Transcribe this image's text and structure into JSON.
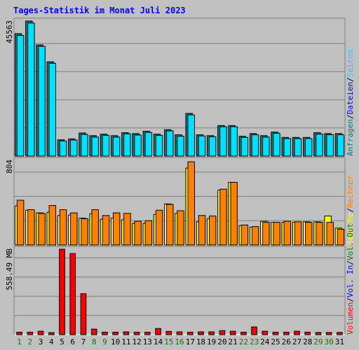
{
  "chart_data": {
    "type": "bar",
    "title": "Tages-Statistik im Monat Juli 2023",
    "days": [
      "1",
      "2",
      "3",
      "4",
      "5",
      "6",
      "7",
      "8",
      "9",
      "10",
      "11",
      "12",
      "13",
      "14",
      "15",
      "16",
      "17",
      "18",
      "19",
      "20",
      "21",
      "22",
      "23",
      "24",
      "25",
      "26",
      "27",
      "28",
      "29",
      "30",
      "31"
    ],
    "weekend_days": [
      "1",
      "2",
      "8",
      "9",
      "15",
      "16",
      "22",
      "23",
      "29",
      "30"
    ],
    "colors": {
      "anfragen": "#008080",
      "dateien": "#0000ff",
      "seiten": "#00e0ff",
      "besuche": "#ffff00",
      "rechner": "#ff8000",
      "kbytes": "#ff0000",
      "weekday_label": "#000000",
      "weekend_label": "#008000",
      "title": "#0000ff"
    },
    "panels": [
      {
        "id": "hits",
        "axis_max_label": "45563",
        "ylim": [
          0,
          45563
        ],
        "legend": [
          {
            "text": "Anfragen",
            "color": "#008080"
          },
          {
            "text": "Dateien",
            "color": "#0000ff"
          },
          {
            "text": "Seiten",
            "color": "#00e0ff"
          }
        ],
        "series": [
          {
            "key": "anfragen",
            "values": [
              41300,
              45563,
              37500,
              31800,
              5500,
              5800,
              7800,
              6900,
              7400,
              6900,
              7900,
              7600,
              8400,
              7400,
              8900,
              7200,
              14400,
              7200,
              6900,
              10300,
              10300,
              6700,
              7600,
              6900,
              8100,
              6300,
              6300,
              6300,
              7900,
              7600,
              7600
            ]
          },
          {
            "key": "seiten",
            "values": [
              40700,
              44900,
              37000,
              31300,
              5100,
              5400,
              7300,
              6400,
              7000,
              6400,
              7500,
              7100,
              8000,
              7000,
              8500,
              6700,
              13900,
              6800,
              6500,
              9900,
              9900,
              6300,
              7200,
              6400,
              7700,
              5900,
              5900,
              5900,
              7400,
              7200,
              7200
            ]
          }
        ]
      },
      {
        "id": "visits",
        "axis_max_label": "804",
        "ylim": [
          0,
          804
        ],
        "legend": [
          {
            "text": "Besuche",
            "color": "#ffff00"
          },
          {
            "text": "Rechner",
            "color": "#ff8000"
          }
        ],
        "series": [
          {
            "key": "besuche",
            "values": [
              370,
              330,
              305,
              310,
              280,
              285,
              255,
              295,
              245,
              255,
              240,
              205,
              205,
              290,
              390,
              300,
              730,
              220,
              250,
              520,
              595,
              185,
              170,
              225,
              215,
              215,
              215,
              220,
              220,
              275,
              160
            ]
          },
          {
            "key": "rechner",
            "values": [
              425,
              335,
              300,
              375,
              335,
              305,
              250,
              335,
              280,
              305,
              300,
              225,
              230,
              330,
              385,
              325,
              790,
              280,
              275,
              530,
              595,
              190,
              175,
              215,
              215,
              225,
              220,
              215,
              215,
              215,
              150
            ]
          }
        ]
      },
      {
        "id": "volume",
        "axis_max_label": "558.49 MB",
        "ylim": [
          0,
          558.49
        ],
        "legend": [
          {
            "text": "Volumen",
            "color": "#ff0000"
          },
          {
            "text": "Vol. In",
            "color": "#0000ff"
          },
          {
            "text": "Vol. Out",
            "color": "#008000"
          }
        ],
        "series": [
          {
            "key": "kbytes",
            "values": [
              16,
              16,
              22,
              13,
              558.49,
              530,
              268,
              36,
              16,
              16,
              18,
              16,
              16,
              40,
              21,
              18,
              16,
              18,
              18,
              26,
              22,
              16,
              50,
              22,
              16,
              16,
              22,
              16,
              14,
              14,
              14
            ]
          }
        ]
      }
    ]
  }
}
